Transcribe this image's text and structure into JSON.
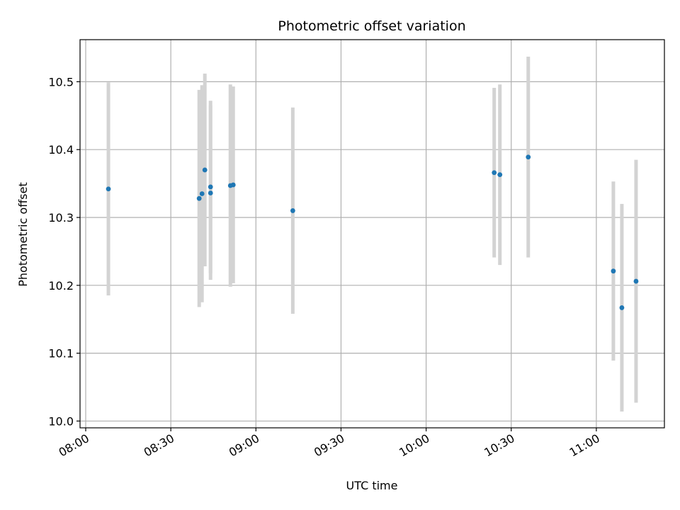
{
  "chart_data": {
    "type": "scatter",
    "title": "Photometric offset variation",
    "xlabel": "UTC time",
    "ylabel": "Photometric offset",
    "grid": true,
    "x_tick_labels": [
      "08:00",
      "08:30",
      "09:00",
      "09:30",
      "10:00",
      "10:30",
      "11:00"
    ],
    "y_tick_labels": [
      "10.0",
      "10.1",
      "10.2",
      "10.3",
      "10.4",
      "10.5"
    ],
    "xlim": [
      "07:58",
      "11:24"
    ],
    "ylim": [
      9.99,
      10.562
    ],
    "colors": {
      "points": "#1f77b4",
      "errorbars": "#d3d3d3",
      "grid": "#b0b0b0"
    },
    "points": [
      {
        "t": "08:08",
        "y": 10.342,
        "ylow": 10.185,
        "yhigh": 10.499
      },
      {
        "t": "08:40",
        "y": 10.328,
        "ylow": 10.168,
        "yhigh": 10.488
      },
      {
        "t": "08:41",
        "y": 10.335,
        "ylow": 10.175,
        "yhigh": 10.495
      },
      {
        "t": "08:42",
        "y": 10.37,
        "ylow": 10.228,
        "yhigh": 10.512
      },
      {
        "t": "08:44",
        "y": 10.345,
        "ylow": 10.218,
        "yhigh": 10.472
      },
      {
        "t": "08:44",
        "y": 10.336,
        "ylow": 10.208,
        "yhigh": 10.465
      },
      {
        "t": "08:51",
        "y": 10.347,
        "ylow": 10.198,
        "yhigh": 10.496
      },
      {
        "t": "08:52",
        "y": 10.348,
        "ylow": 10.203,
        "yhigh": 10.493
      },
      {
        "t": "09:13",
        "y": 10.31,
        "ylow": 10.158,
        "yhigh": 10.462
      },
      {
        "t": "10:24",
        "y": 10.366,
        "ylow": 10.241,
        "yhigh": 10.491
      },
      {
        "t": "10:26",
        "y": 10.363,
        "ylow": 10.23,
        "yhigh": 10.496
      },
      {
        "t": "10:36",
        "y": 10.389,
        "ylow": 10.241,
        "yhigh": 10.537
      },
      {
        "t": "11:06",
        "y": 10.221,
        "ylow": 10.089,
        "yhigh": 10.353
      },
      {
        "t": "11:09",
        "y": 10.167,
        "ylow": 10.014,
        "yhigh": 10.32
      },
      {
        "t": "11:14",
        "y": 10.206,
        "ylow": 10.027,
        "yhigh": 10.385
      }
    ]
  }
}
